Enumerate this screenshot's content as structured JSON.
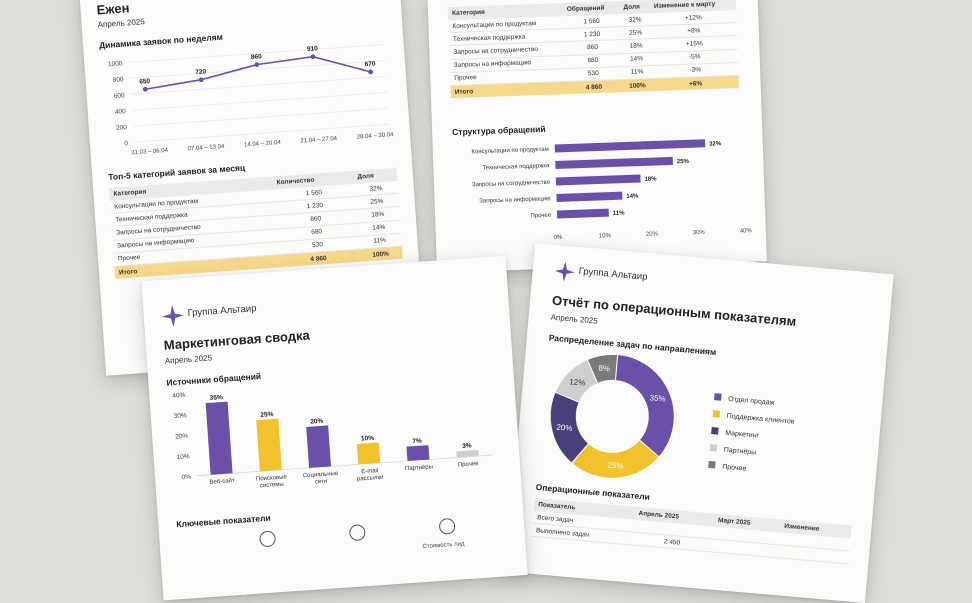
{
  "sheet1": {
    "title_partial": "Ежен",
    "date": "Апрель 2025",
    "chart_title": "Динамика заявок по неделям",
    "top5_title": "Топ-5 категорий заявок за месяц",
    "table": {
      "headers": [
        "Категория",
        "Количество",
        "Доля"
      ],
      "rows": [
        [
          "Консультации по продуктам",
          "1 560",
          "32%"
        ],
        [
          "Техническая поддержка",
          "1 230",
          "25%"
        ],
        [
          "Запросы на сотрудничество",
          "860",
          "18%"
        ],
        [
          "Запросы на информацию",
          "680",
          "14%"
        ],
        [
          "Прочее",
          "530",
          "11%"
        ]
      ],
      "total": [
        "Итого",
        "4 860",
        "100%"
      ]
    }
  },
  "sheet2": {
    "table": {
      "headers": [
        "Категория",
        "Обращений",
        "Доля",
        "Изменение к марту"
      ],
      "rows": [
        [
          "Консультации по продуктам",
          "1 560",
          "32%",
          "+12%"
        ],
        [
          "Техническая поддержка",
          "1 230",
          "25%",
          "+8%"
        ],
        [
          "Запросы на сотрудничество",
          "860",
          "18%",
          "+15%"
        ],
        [
          "Запросы на информацию",
          "680",
          "14%",
          "-5%"
        ],
        [
          "Прочее",
          "530",
          "11%",
          "-3%"
        ]
      ],
      "total": [
        "Итого",
        "4 860",
        "100%",
        "+6%"
      ]
    },
    "chart_title": "Структура обращений"
  },
  "sheet3": {
    "brand": "Группа Альтаир",
    "title": "Маркетинговая сводка",
    "date": "Апрель 2025",
    "chart_title": "Источники обращений",
    "kpi_title": "Ключевые показатели",
    "kpi_partial": "Стоимость лид"
  },
  "sheet4": {
    "brand": "Группа Альтаир",
    "title": "Отчёт по операционным показателям",
    "date": "Апрель 2025",
    "chart_title": "Распределение задач по направлениям",
    "ops_title": "Операционные показатели",
    "ops_headers": [
      "Показатель",
      "Апрель 2025",
      "Март 2025",
      "Изменение"
    ],
    "ops_rows": [
      [
        "Всего задач",
        "",
        "",
        ""
      ],
      [
        "Выполнено задач",
        "2 450",
        "",
        ""
      ]
    ]
  },
  "colors": {
    "purple": "#6b4fa8",
    "yellow": "#f2c12e",
    "dark": "#4a3f7a",
    "light": "#cfcfcf",
    "grey": "#7a7a7a",
    "total": "#f7d78a"
  },
  "chart_data": [
    {
      "type": "line",
      "categories": [
        "31.03 – 06.04",
        "07.04 – 13.04",
        "14.04 – 20.04",
        "21.04 – 27.04",
        "28.04 – 30.04"
      ],
      "values": [
        650,
        720,
        860,
        910,
        670
      ],
      "yticks": [
        "1000",
        "800",
        "600",
        "400",
        "200",
        "0"
      ],
      "ylim": [
        0,
        1000
      ]
    },
    {
      "type": "bar",
      "orientation": "horizontal",
      "categories": [
        "Консультации по продуктам",
        "Техническая поддержка",
        "Запросы на сотрудничество",
        "Запросы на информацию",
        "Прочее"
      ],
      "values": [
        32,
        25,
        18,
        14,
        11
      ],
      "labels": [
        "32%",
        "25%",
        "18%",
        "14%",
        "11%"
      ],
      "xticks": [
        "0%",
        "10%",
        "20%",
        "30%",
        "40%"
      ],
      "xlim": [
        0,
        40
      ]
    },
    {
      "type": "bar",
      "categories": [
        "Веб-сайт",
        "Поисковые системы",
        "Социальные сети",
        "E-mail рассылки",
        "Партнёры",
        "Прочее"
      ],
      "values": [
        35,
        25,
        20,
        10,
        7,
        3
      ],
      "labels": [
        "35%",
        "25%",
        "20%",
        "10%",
        "7%",
        "3%"
      ],
      "yticks": [
        "40%",
        "30%",
        "20%",
        "10%",
        "0%"
      ],
      "ylim": [
        0,
        40
      ]
    },
    {
      "type": "pie",
      "categories": [
        "Отдел продаж",
        "Поддержка клиентов",
        "Маркетинг",
        "Партнёры",
        "Прочее"
      ],
      "values": [
        35,
        25,
        20,
        12,
        8
      ],
      "labels": [
        "35%",
        "25%",
        "20%",
        "12%",
        "8%"
      ]
    }
  ]
}
